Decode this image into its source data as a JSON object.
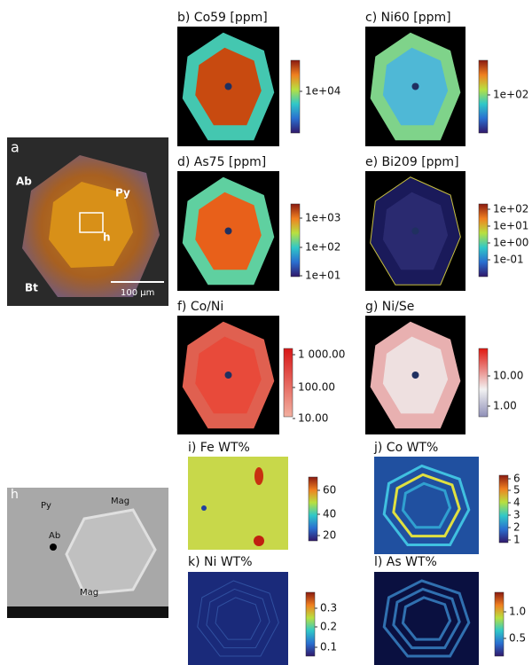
{
  "overview": {
    "label": "a",
    "annotations": [
      "Ab",
      "Py",
      "h",
      "Bt"
    ],
    "scale_bar": "100 µm"
  },
  "sem": {
    "label": "h",
    "annotations": [
      "Py",
      "Mag",
      "Ab",
      "Mag"
    ]
  },
  "maps": [
    {
      "title": "b) Co59 [ppm]",
      "ticks": [
        "1e+04"
      ]
    },
    {
      "title": "c) Ni60 [ppm]",
      "ticks": [
        "1e+02"
      ]
    },
    {
      "title": "d) As75 [ppm]",
      "ticks": [
        "1e+03",
        "1e+02",
        "1e+01"
      ]
    },
    {
      "title": "e) Bi209 [ppm]",
      "ticks": [
        "1e+02",
        "1e+01",
        "1e+00",
        "1e-01"
      ]
    },
    {
      "title": "f) Co/Ni",
      "ticks": [
        "1 000.00",
        "100.00",
        "10.00"
      ]
    },
    {
      "title": "g) Ni/Se",
      "ticks": [
        "10.00",
        "1.00"
      ]
    },
    {
      "title": "i) Fe WT%",
      "ticks": [
        "60",
        "40",
        "20"
      ]
    },
    {
      "title": "j) Co WT%",
      "ticks": [
        "6",
        "5",
        "4",
        "3",
        "2",
        "1"
      ]
    },
    {
      "title": "k) Ni WT%",
      "ticks": [
        "0.3",
        "0.2",
        "0.1"
      ]
    },
    {
      "title": "l) As WT%",
      "ticks": [
        "1.0",
        "0.5"
      ]
    }
  ]
}
